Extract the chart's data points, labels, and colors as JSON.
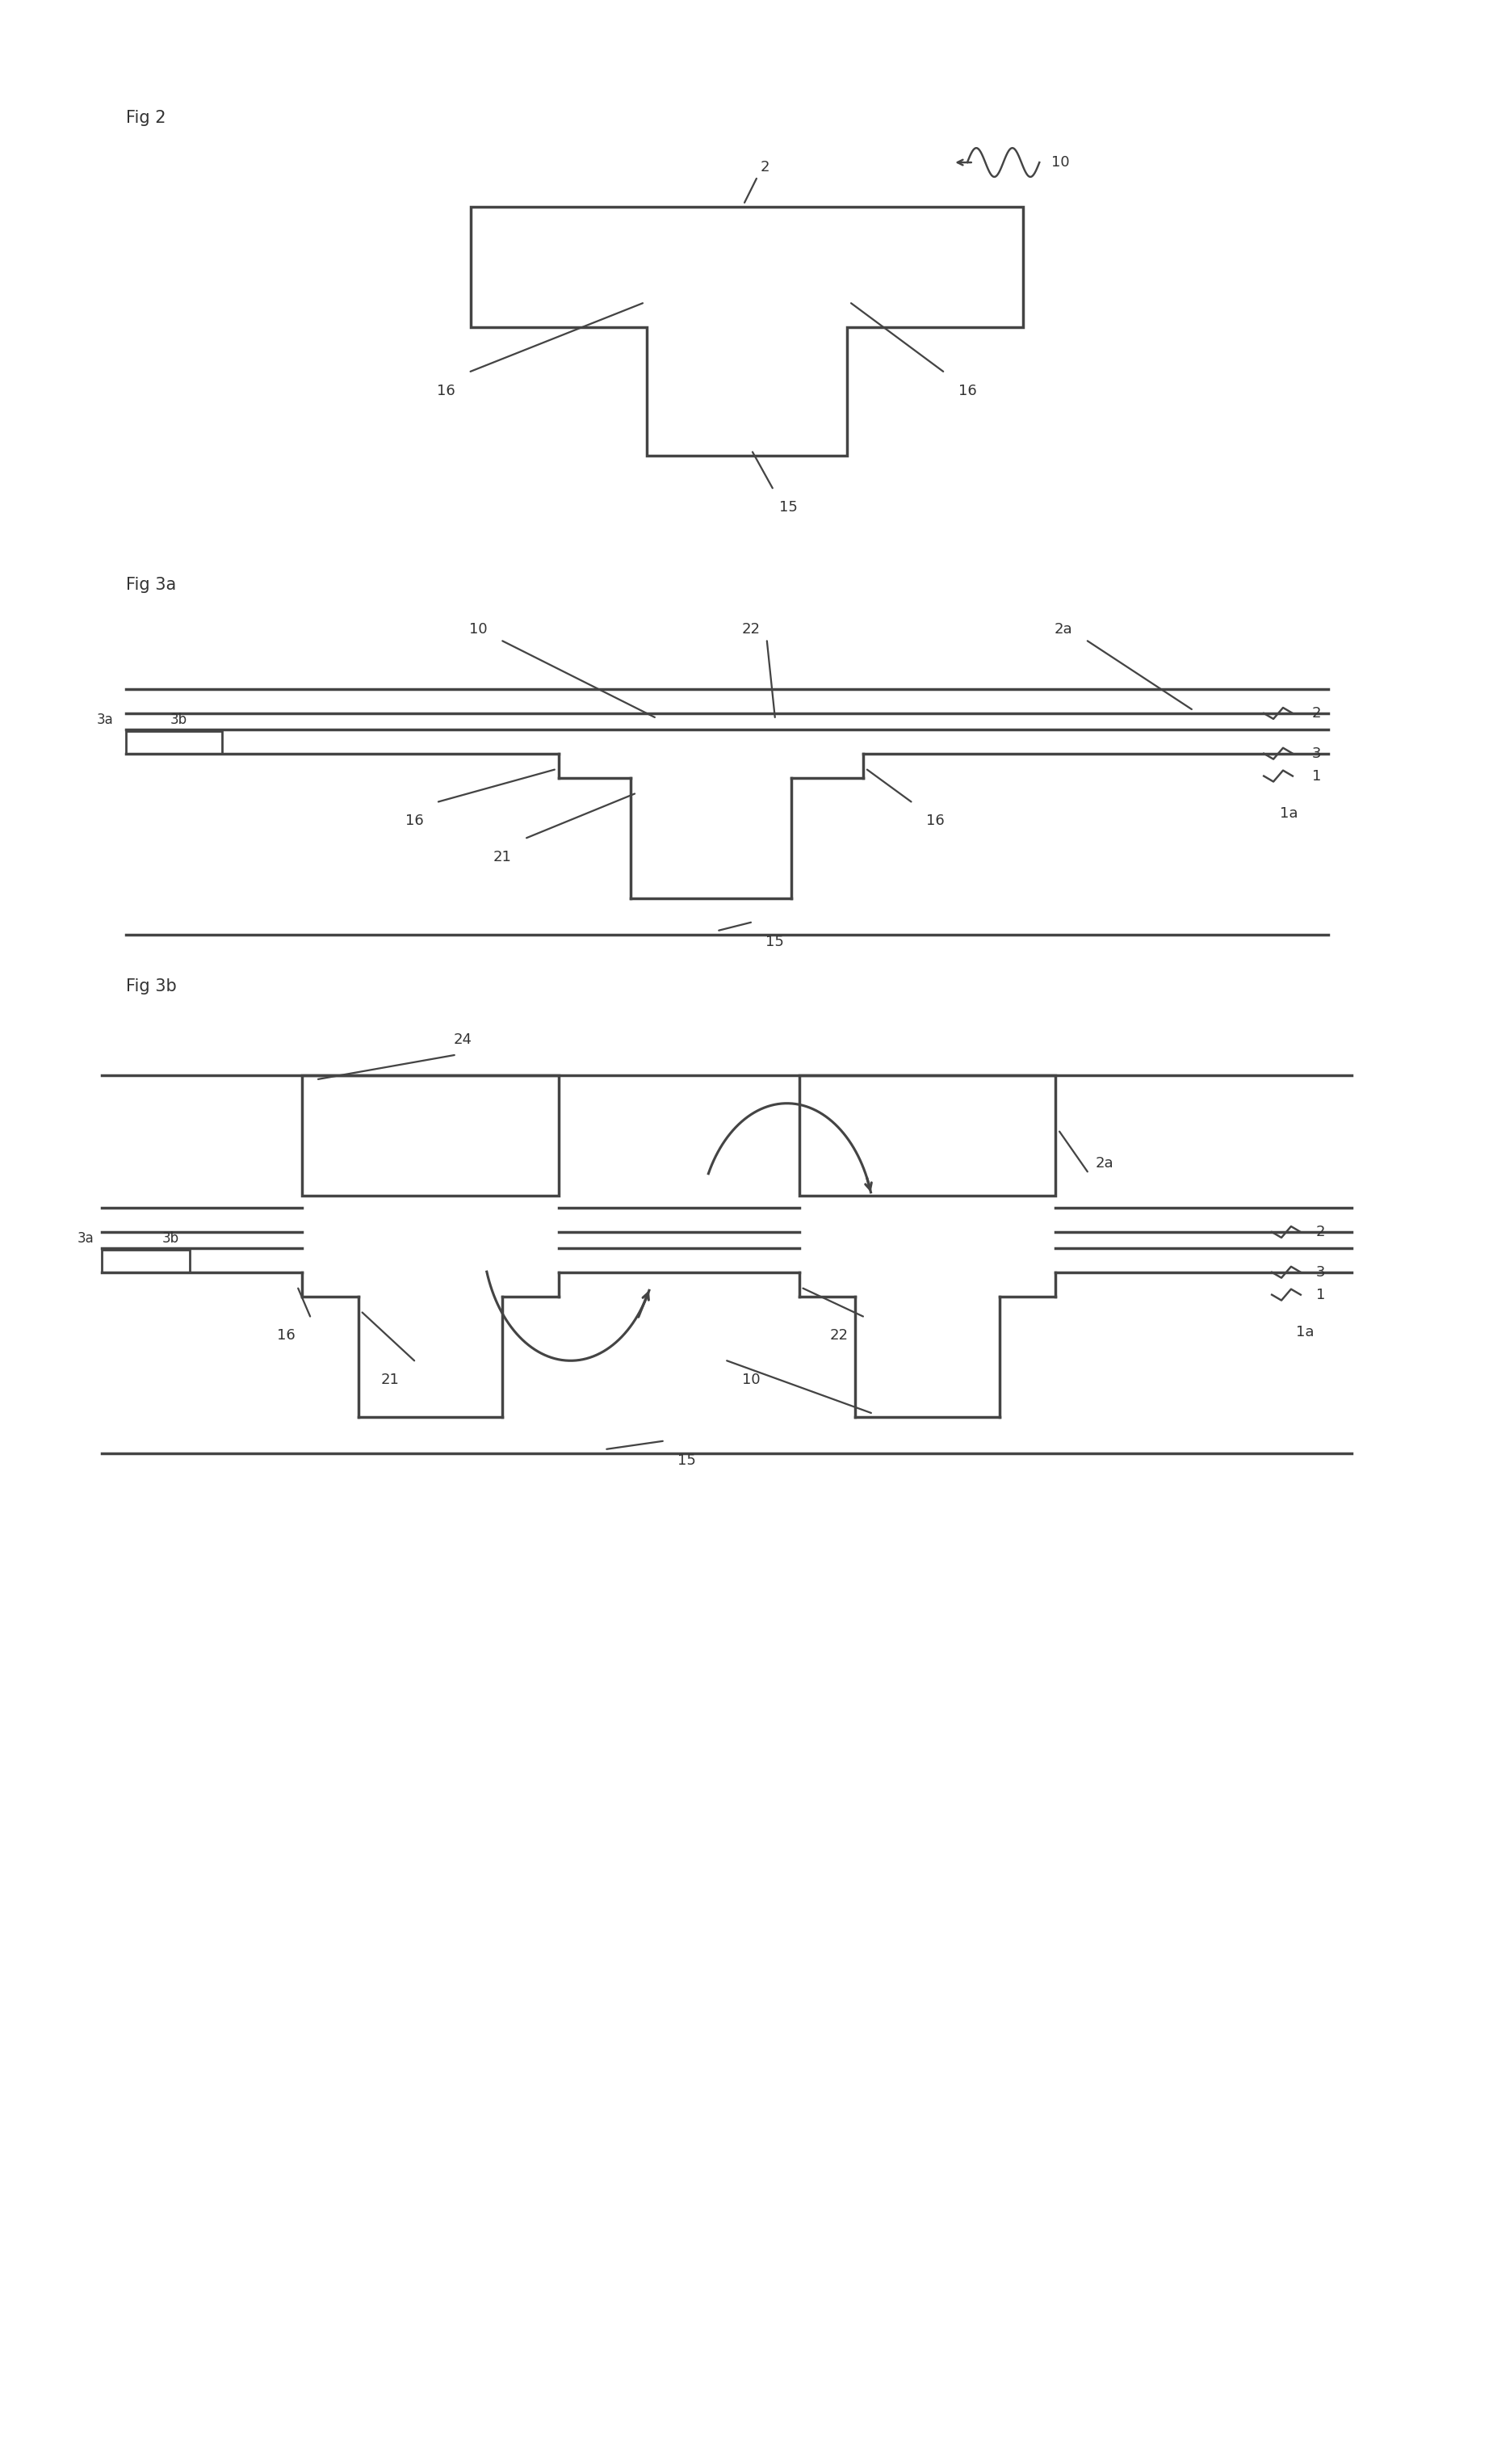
{
  "bg_color": "#ffffff",
  "line_color": "#444444",
  "line_width": 2.5,
  "text_color": "#333333",
  "fig2_label": "Fig 2",
  "fig3a_label": "Fig 3a",
  "fig3b_label": "Fig 3b"
}
